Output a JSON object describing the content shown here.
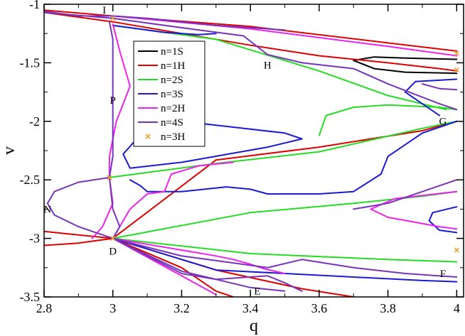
{
  "chart_data": {
    "type": "line",
    "title": "",
    "xlabel": "q",
    "ylabel": "v",
    "xlim": [
      2.8,
      4.02
    ],
    "ylim": [
      -3.5,
      -1.0
    ],
    "x_ticks": [
      "2.8",
      "3",
      "3.2",
      "3.4",
      "3.6",
      "3.8",
      "4"
    ],
    "y_ticks": [
      "-1",
      "-1.5",
      "-2",
      "-2.5",
      "-3",
      "-3.5"
    ],
    "grid": false,
    "legend_position": "top-left-center",
    "colors": {
      "n=1S": "#000000",
      "n=1H": "#e00000",
      "n=2S": "#22dd22",
      "n=3S": "#1a1ad6",
      "n=2H": "#ee22ee",
      "n=4S": "#7733bb",
      "n=3H": "#f0a030"
    },
    "legend": [
      {
        "name": "n=1S",
        "marker": "line"
      },
      {
        "name": "n=1H",
        "marker": "line"
      },
      {
        "name": "n=2S",
        "marker": "line"
      },
      {
        "name": "n=3S",
        "marker": "line"
      },
      {
        "name": "n=2H",
        "marker": "line"
      },
      {
        "name": "n=4S",
        "marker": "line"
      },
      {
        "name": "n=3H",
        "marker": "x"
      }
    ],
    "point_labels": [
      {
        "text": "I",
        "x": 2.975,
        "y": -1.08
      },
      {
        "text": "H",
        "x": 3.45,
        "y": -1.55
      },
      {
        "text": "P",
        "x": 3.0,
        "y": -1.85
      },
      {
        "text": "G",
        "x": 3.96,
        "y": -2.03
      },
      {
        "text": "N",
        "x": 2.81,
        "y": -2.78
      },
      {
        "text": "D",
        "x": 3.0,
        "y": -3.14
      },
      {
        "text": "F",
        "x": 3.96,
        "y": -3.33
      },
      {
        "text": "E",
        "x": 3.42,
        "y": -3.48
      }
    ],
    "series": [
      {
        "name": "n=1S",
        "points": [
          [
            3.7,
            -1.48
          ],
          [
            3.76,
            -1.45
          ],
          [
            3.85,
            -1.46
          ],
          [
            4.0,
            -1.47
          ]
        ]
      },
      {
        "name": "n=1S",
        "points": [
          [
            3.7,
            -1.48
          ],
          [
            3.76,
            -1.55
          ],
          [
            3.85,
            -1.58
          ],
          [
            4.0,
            -1.59
          ]
        ]
      },
      {
        "name": "n=1H",
        "points": [
          [
            2.8,
            -1.07
          ],
          [
            3.0,
            -1.15
          ],
          [
            3.2,
            -1.25
          ],
          [
            3.4,
            -1.35
          ],
          [
            3.6,
            -1.44
          ],
          [
            3.8,
            -1.5
          ],
          [
            3.95,
            -1.55
          ],
          [
            4.0,
            -1.57
          ]
        ]
      },
      {
        "name": "n=1H",
        "points": [
          [
            2.8,
            -1.05
          ],
          [
            3.0,
            -1.1
          ],
          [
            3.4,
            -1.19
          ],
          [
            3.8,
            -1.33
          ],
          [
            4.0,
            -1.4
          ]
        ]
      },
      {
        "name": "n=1H",
        "points": [
          [
            3.0,
            -3.0
          ],
          [
            3.3,
            -2.33
          ],
          [
            3.6,
            -2.22
          ],
          [
            3.9,
            -2.08
          ],
          [
            4.0,
            -2.0
          ]
        ]
      },
      {
        "name": "n=1H",
        "points": [
          [
            3.0,
            -3.0
          ],
          [
            2.9,
            -3.04
          ],
          [
            2.8,
            -3.06
          ]
        ]
      },
      {
        "name": "n=1H",
        "points": [
          [
            3.0,
            -3.0
          ],
          [
            2.9,
            -2.97
          ],
          [
            2.8,
            -2.94
          ]
        ]
      },
      {
        "name": "n=1H",
        "points": [
          [
            3.0,
            -3.0
          ],
          [
            3.3,
            -3.27
          ],
          [
            3.55,
            -3.43
          ],
          [
            3.7,
            -3.5
          ]
        ]
      },
      {
        "name": "n=1H",
        "points": [
          [
            3.0,
            -3.0
          ],
          [
            3.2,
            -3.25
          ],
          [
            3.3,
            -3.45
          ],
          [
            3.35,
            -3.5
          ]
        ]
      },
      {
        "name": "n=2S",
        "points": [
          [
            2.99,
            -2.48
          ],
          [
            3.3,
            -2.36
          ],
          [
            3.6,
            -2.26
          ],
          [
            3.9,
            -2.06
          ],
          [
            4.0,
            -2.0
          ]
        ]
      },
      {
        "name": "n=2S",
        "points": [
          [
            3.0,
            -3.0
          ],
          [
            3.4,
            -2.78
          ],
          [
            3.7,
            -2.7
          ],
          [
            3.9,
            -2.64
          ],
          [
            4.0,
            -2.6
          ]
        ]
      },
      {
        "name": "n=2S",
        "points": [
          [
            3.0,
            -3.0
          ],
          [
            3.4,
            -3.13
          ],
          [
            3.8,
            -3.18
          ],
          [
            4.0,
            -3.2
          ]
        ]
      },
      {
        "name": "n=2S",
        "points": [
          [
            3.6,
            -2.12
          ],
          [
            3.62,
            -1.95
          ],
          [
            3.7,
            -1.88
          ],
          [
            3.8,
            -1.86
          ],
          [
            3.95,
            -1.88
          ],
          [
            4.0,
            -1.9
          ]
        ]
      },
      {
        "name": "n=2S",
        "points": [
          [
            3.0,
            -1.18
          ],
          [
            3.3,
            -1.3
          ],
          [
            3.6,
            -1.57
          ],
          [
            3.8,
            -1.78
          ],
          [
            3.97,
            -1.9
          ]
        ]
      },
      {
        "name": "n=3S",
        "points": [
          [
            3.0,
            -1.18
          ],
          [
            3.15,
            -1.24
          ],
          [
            3.25,
            -1.26
          ],
          [
            3.3,
            -1.25
          ]
        ]
      },
      {
        "name": "n=3S",
        "points": [
          [
            3.03,
            -2.28
          ],
          [
            3.1,
            -2.05
          ],
          [
            3.2,
            -2.0
          ],
          [
            3.35,
            -2.05
          ],
          [
            3.5,
            -2.1
          ],
          [
            3.55,
            -2.15
          ],
          [
            3.45,
            -2.22
          ],
          [
            3.2,
            -2.35
          ],
          [
            3.05,
            -2.4
          ],
          [
            3.03,
            -2.28
          ]
        ]
      },
      {
        "name": "n=3S",
        "points": [
          [
            3.05,
            -2.5
          ],
          [
            3.08,
            -2.55
          ],
          [
            3.1,
            -2.6
          ],
          [
            3.2,
            -2.6
          ],
          [
            3.33,
            -2.56
          ],
          [
            3.4,
            -2.58
          ],
          [
            3.45,
            -2.62
          ],
          [
            3.6,
            -2.62
          ],
          [
            3.7,
            -2.6
          ],
          [
            3.78,
            -2.45
          ],
          [
            3.8,
            -2.3
          ],
          [
            3.9,
            -2.1
          ],
          [
            4.0,
            -2.0
          ]
        ]
      },
      {
        "name": "n=3S",
        "points": [
          [
            3.95,
            -1.95
          ],
          [
            3.85,
            -1.75
          ],
          [
            3.88,
            -1.66
          ],
          [
            4.0,
            -1.64
          ]
        ]
      },
      {
        "name": "n=3S",
        "points": [
          [
            4.0,
            -2.73
          ],
          [
            3.93,
            -2.78
          ],
          [
            3.92,
            -2.85
          ],
          [
            3.95,
            -2.93
          ],
          [
            4.0,
            -2.95
          ]
        ]
      },
      {
        "name": "n=3S",
        "points": [
          [
            3.0,
            -3.0
          ],
          [
            3.3,
            -3.27
          ],
          [
            3.5,
            -3.3
          ],
          [
            3.7,
            -3.33
          ],
          [
            3.9,
            -3.36
          ],
          [
            4.0,
            -3.37
          ]
        ]
      },
      {
        "name": "n=2H",
        "points": [
          [
            3.0,
            -1.17
          ],
          [
            3.02,
            -1.4
          ],
          [
            3.05,
            -1.7
          ],
          [
            3.01,
            -2.0
          ],
          [
            2.99,
            -2.3
          ],
          [
            2.99,
            -2.48
          ],
          [
            3.0,
            -2.7
          ],
          [
            2.97,
            -2.9
          ],
          [
            2.94,
            -3.0
          ]
        ]
      },
      {
        "name": "n=2H",
        "points": [
          [
            3.0,
            -3.0
          ],
          [
            3.05,
            -2.75
          ],
          [
            3.1,
            -2.62
          ],
          [
            3.15,
            -2.6
          ],
          [
            3.17,
            -2.45
          ],
          [
            3.25,
            -2.38
          ],
          [
            3.35,
            -2.35
          ]
        ]
      },
      {
        "name": "n=2H",
        "points": [
          [
            4.0,
            -2.6
          ],
          [
            3.82,
            -2.66
          ],
          [
            3.75,
            -2.75
          ],
          [
            3.8,
            -2.82
          ],
          [
            3.95,
            -2.9
          ],
          [
            4.0,
            -2.92
          ]
        ]
      },
      {
        "name": "n=2H",
        "points": [
          [
            3.0,
            -1.1
          ],
          [
            3.4,
            -1.21
          ],
          [
            3.8,
            -1.36
          ],
          [
            4.0,
            -1.44
          ]
        ]
      },
      {
        "name": "n=2H",
        "points": [
          [
            3.0,
            -3.0
          ],
          [
            3.3,
            -3.15
          ],
          [
            3.35,
            -3.18
          ],
          [
            3.4,
            -3.22
          ],
          [
            3.44,
            -3.26
          ],
          [
            3.5,
            -3.3
          ]
        ]
      },
      {
        "name": "n=2H",
        "points": [
          [
            3.0,
            -3.0
          ],
          [
            3.2,
            -3.32
          ],
          [
            3.3,
            -3.48
          ]
        ]
      },
      {
        "name": "n=4S",
        "points": [
          [
            2.8,
            -1.07
          ],
          [
            3.0,
            -1.12
          ],
          [
            3.2,
            -1.2
          ],
          [
            3.38,
            -1.27
          ],
          [
            3.45,
            -1.43
          ],
          [
            3.55,
            -1.5
          ],
          [
            3.7,
            -1.55
          ],
          [
            3.8,
            -1.68
          ],
          [
            3.95,
            -1.85
          ],
          [
            4.0,
            -1.9
          ]
        ]
      },
      {
        "name": "n=4S",
        "points": [
          [
            2.99,
            -1.15
          ],
          [
            3.0,
            -1.3
          ],
          [
            3.0,
            -1.8
          ],
          [
            3.0,
            -2.3
          ],
          [
            2.99,
            -2.48
          ],
          [
            3.0,
            -2.75
          ],
          [
            3.02,
            -2.9
          ],
          [
            3.0,
            -3.0
          ]
        ]
      },
      {
        "name": "n=4S",
        "points": [
          [
            2.99,
            -2.48
          ],
          [
            2.9,
            -2.52
          ],
          [
            2.83,
            -2.6
          ],
          [
            2.81,
            -2.7
          ],
          [
            2.83,
            -2.8
          ],
          [
            2.9,
            -2.9
          ],
          [
            3.0,
            -3.0
          ]
        ]
      },
      {
        "name": "n=4S",
        "points": [
          [
            2.8,
            -1.06
          ],
          [
            2.9,
            -1.1
          ],
          [
            3.0,
            -1.1
          ],
          [
            3.1,
            -1.12
          ],
          [
            3.3,
            -1.18
          ],
          [
            3.5,
            -1.22
          ]
        ]
      },
      {
        "name": "n=4S",
        "points": [
          [
            3.0,
            -3.0
          ],
          [
            3.2,
            -3.15
          ],
          [
            3.45,
            -3.25
          ],
          [
            3.55,
            -3.18
          ],
          [
            3.7,
            -3.25
          ],
          [
            3.85,
            -3.3
          ],
          [
            4.0,
            -3.33
          ]
        ]
      },
      {
        "name": "n=4S",
        "points": [
          [
            3.0,
            -3.0
          ],
          [
            3.2,
            -3.28
          ],
          [
            3.4,
            -3.42
          ],
          [
            3.5,
            -3.45
          ]
        ]
      },
      {
        "name": "n=4S",
        "points": [
          [
            3.7,
            -2.75
          ],
          [
            3.8,
            -2.7
          ],
          [
            3.9,
            -2.6
          ],
          [
            4.0,
            -2.5
          ]
        ]
      },
      {
        "name": "n=4S",
        "points": [
          [
            3.0,
            -3.0
          ],
          [
            3.2,
            -3.3
          ],
          [
            3.3,
            -3.35
          ],
          [
            3.45,
            -3.32
          ],
          [
            3.5,
            -3.38
          ],
          [
            3.55,
            -3.45
          ]
        ]
      },
      {
        "name": "n=4S",
        "points": [
          [
            3.9,
            -1.68
          ],
          [
            3.95,
            -1.72
          ],
          [
            4.0,
            -1.73
          ]
        ]
      }
    ],
    "markers_n3H": [
      [
        3.0,
        -1.12
      ],
      [
        2.99,
        -2.48
      ],
      [
        3.0,
        -3.0
      ],
      [
        4.0,
        -1.42
      ],
      [
        4.0,
        -1.56
      ],
      [
        4.0,
        -3.1
      ]
    ]
  }
}
